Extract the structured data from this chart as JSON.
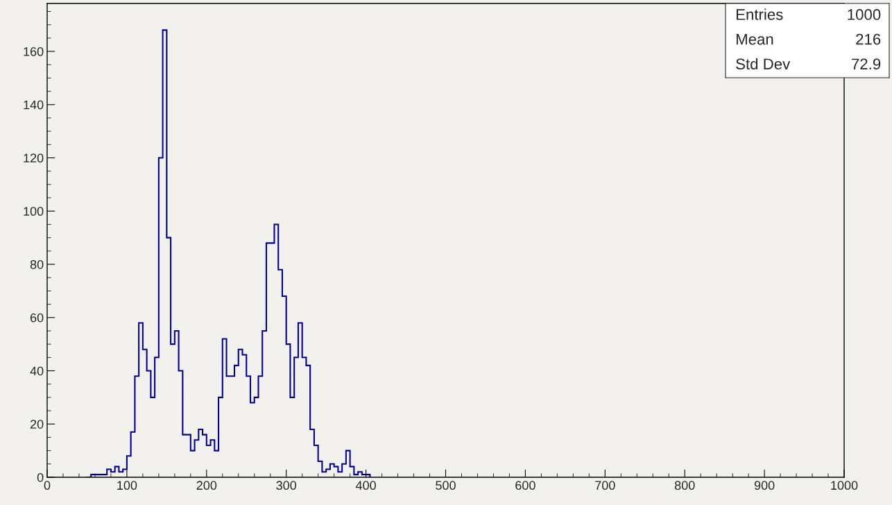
{
  "chart_data": {
    "type": "histogram",
    "bins": [
      50,
      55,
      60,
      65,
      70,
      75,
      80,
      85,
      90,
      95,
      100,
      105,
      110,
      115,
      120,
      125,
      130,
      135,
      140,
      145,
      150,
      155,
      160,
      165,
      170,
      175,
      180,
      185,
      190,
      195,
      200,
      205,
      210,
      215,
      220,
      225,
      230,
      235,
      240,
      245,
      250,
      255,
      260,
      265,
      270,
      275,
      280,
      285,
      290,
      295,
      300,
      305,
      310,
      315,
      320,
      325,
      330,
      335,
      340,
      345,
      350,
      355,
      360,
      365,
      370,
      375,
      380,
      385,
      390,
      395,
      400,
      405
    ],
    "values": [
      0,
      1,
      1,
      1,
      1,
      3,
      2,
      4,
      2,
      3,
      8,
      17,
      38,
      58,
      48,
      40,
      30,
      45,
      120,
      168,
      90,
      50,
      55,
      40,
      16,
      16,
      10,
      14,
      18,
      16,
      12,
      14,
      10,
      30,
      52,
      38,
      38,
      42,
      48,
      46,
      38,
      28,
      30,
      38,
      55,
      88,
      88,
      95,
      78,
      68,
      50,
      30,
      45,
      58,
      45,
      42,
      18,
      12,
      6,
      2,
      3,
      5,
      4,
      2,
      5,
      10,
      4,
      1,
      2,
      1,
      1
    ],
    "color": "#000099",
    "xlim": [
      0,
      1000
    ],
    "xticks": [
      0,
      100,
      200,
      300,
      400,
      500,
      600,
      700,
      800,
      900,
      1000
    ],
    "ylim": [
      0,
      178
    ],
    "yticks": [
      0,
      20,
      40,
      60,
      80,
      100,
      120,
      140,
      160
    ],
    "grid": false,
    "legend": false,
    "annotations": [
      "Entries",
      "1000",
      "Mean",
      "216",
      "Std Dev",
      "72.9"
    ]
  }
}
